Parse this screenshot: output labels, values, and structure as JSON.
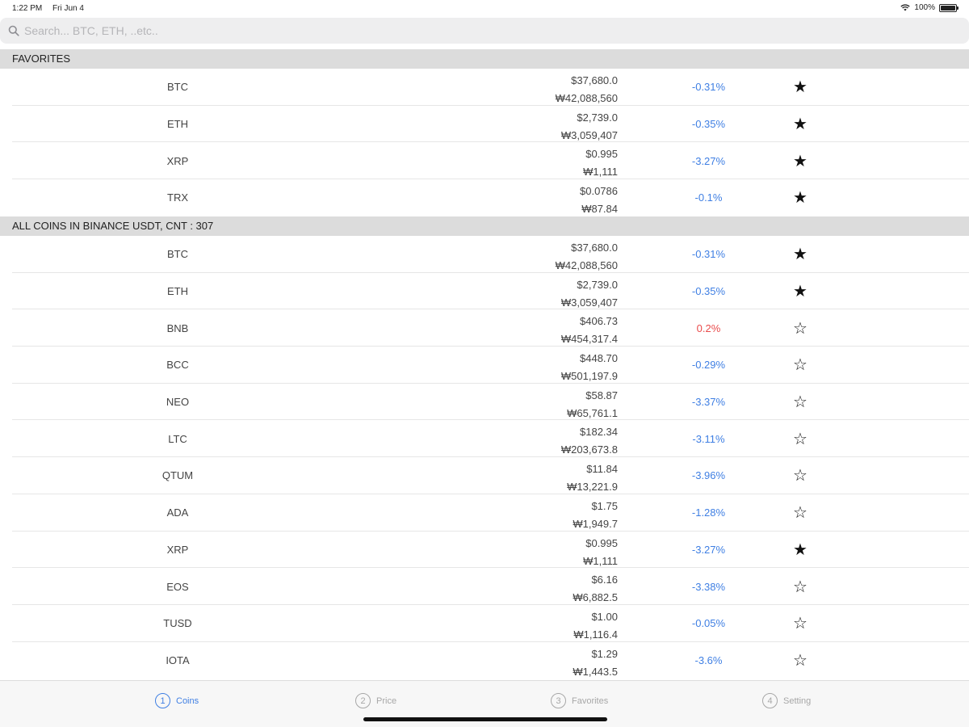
{
  "status": {
    "time": "1:22 PM",
    "date": "Fri Jun 4",
    "battery": "100%"
  },
  "search": {
    "placeholder": "Search... BTC, ETH, ..etc.."
  },
  "favorites": {
    "header": "FAVORITES",
    "rows": [
      {
        "symbol": "BTC",
        "usd": "$37,680.0",
        "krw": "₩42,088,560",
        "change": "-0.31%",
        "dir": "neg",
        "star": "★"
      },
      {
        "symbol": "ETH",
        "usd": "$2,739.0",
        "krw": "₩3,059,407",
        "change": "-0.35%",
        "dir": "neg",
        "star": "★"
      },
      {
        "symbol": "XRP",
        "usd": "$0.995",
        "krw": "₩1,111",
        "change": "-3.27%",
        "dir": "neg",
        "star": "★"
      },
      {
        "symbol": "TRX",
        "usd": "$0.0786",
        "krw": "₩87.84",
        "change": "-0.1%",
        "dir": "neg",
        "star": "★"
      }
    ]
  },
  "all_coins": {
    "header": "ALL COINS IN BINANCE USDT, CNT : 307",
    "rows": [
      {
        "symbol": "BTC",
        "usd": "$37,680.0",
        "krw": "₩42,088,560",
        "change": "-0.31%",
        "dir": "neg",
        "star": "★"
      },
      {
        "symbol": "ETH",
        "usd": "$2,739.0",
        "krw": "₩3,059,407",
        "change": "-0.35%",
        "dir": "neg",
        "star": "★"
      },
      {
        "symbol": "BNB",
        "usd": "$406.73",
        "krw": "₩454,317.4",
        "change": "0.2%",
        "dir": "pos",
        "star": "☆"
      },
      {
        "symbol": "BCC",
        "usd": "$448.70",
        "krw": "₩501,197.9",
        "change": "-0.29%",
        "dir": "neg",
        "star": "☆"
      },
      {
        "symbol": "NEO",
        "usd": "$58.87",
        "krw": "₩65,761.1",
        "change": "-3.37%",
        "dir": "neg",
        "star": "☆"
      },
      {
        "symbol": "LTC",
        "usd": "$182.34",
        "krw": "₩203,673.8",
        "change": "-3.11%",
        "dir": "neg",
        "star": "☆"
      },
      {
        "symbol": "QTUM",
        "usd": "$11.84",
        "krw": "₩13,221.9",
        "change": "-3.96%",
        "dir": "neg",
        "star": "☆"
      },
      {
        "symbol": "ADA",
        "usd": "$1.75",
        "krw": "₩1,949.7",
        "change": "-1.28%",
        "dir": "neg",
        "star": "☆"
      },
      {
        "symbol": "XRP",
        "usd": "$0.995",
        "krw": "₩1,111",
        "change": "-3.27%",
        "dir": "neg",
        "star": "★"
      },
      {
        "symbol": "EOS",
        "usd": "$6.16",
        "krw": "₩6,882.5",
        "change": "-3.38%",
        "dir": "neg",
        "star": "☆"
      },
      {
        "symbol": "TUSD",
        "usd": "$1.00",
        "krw": "₩1,116.4",
        "change": "-0.05%",
        "dir": "neg",
        "star": "☆"
      },
      {
        "symbol": "IOTA",
        "usd": "$1.29",
        "krw": "₩1,443.5",
        "change": "-3.6%",
        "dir": "neg",
        "star": "☆"
      }
    ]
  },
  "tabs": [
    {
      "num": "1",
      "label": "Coins",
      "active": true
    },
    {
      "num": "2",
      "label": "Price",
      "active": false
    },
    {
      "num": "3",
      "label": "Favorites",
      "active": false
    },
    {
      "num": "4",
      "label": "Setting",
      "active": false
    }
  ],
  "colors": {
    "negative": "#3f7fe3",
    "positive": "#e94b4b",
    "active_tab": "#3f7fe3"
  }
}
